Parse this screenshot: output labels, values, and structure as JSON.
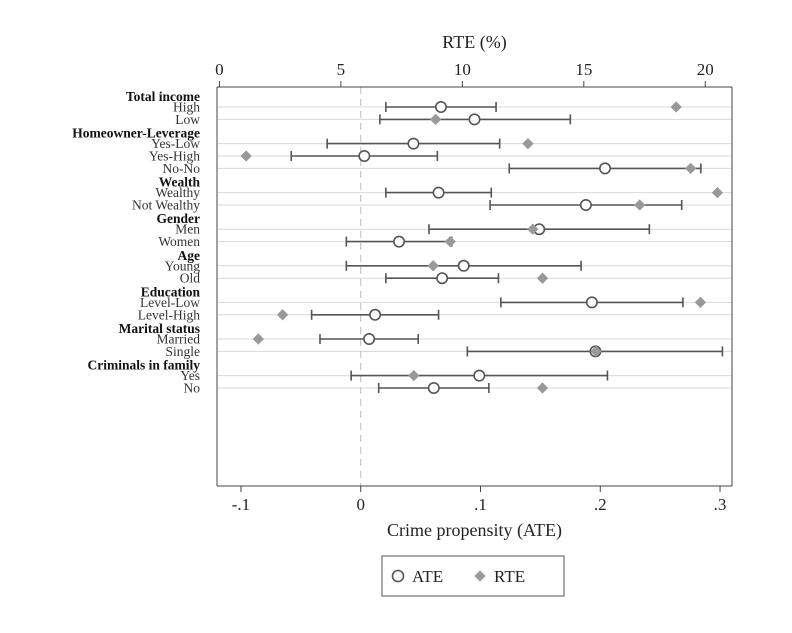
{
  "chart_data": {
    "type": "dot-errorbar",
    "xlabel_bottom": "Crime propensity (ATE)",
    "xlabel_top": "RTE (%)",
    "xlim_bottom": [
      -0.12,
      0.31
    ],
    "xlim_top": [
      -0.1,
      21.1
    ],
    "xticks_bottom": [
      -0.1,
      0,
      0.1,
      0.2,
      0.3
    ],
    "xtick_labels_bottom": [
      "-.1",
      "0",
      ".1",
      ".2",
      ".3"
    ],
    "xticks_top": [
      0,
      5,
      10,
      15,
      20
    ],
    "xtick_labels_top": [
      "0",
      "5",
      "10",
      "15",
      "20"
    ],
    "reference_line_x": 0,
    "legend": {
      "position": "bottom-center",
      "entries": [
        "ATE",
        "RTE"
      ]
    },
    "colors": {
      "ate": "#555555",
      "rte": "#999999",
      "grid": "#d9d9d9",
      "ref": "#bbbbbb"
    },
    "groups": [
      {
        "label": "Total income",
        "rows": [
          {
            "label": "High",
            "ate": 0.067,
            "ci": [
              0.021,
              0.113
            ],
            "rte": 18.8
          },
          {
            "label": "Low",
            "ate": 0.095,
            "ci": [
              0.016,
              0.175
            ],
            "rte": 8.9
          }
        ]
      },
      {
        "label": "Homeowner-Leverage",
        "rows": [
          {
            "label": "Yes-Low",
            "ate": 0.044,
            "ci": [
              -0.028,
              0.116
            ],
            "rte": 12.7
          },
          {
            "label": "Yes-High",
            "ate": 0.003,
            "ci": [
              -0.058,
              0.064
            ],
            "rte": 1.1
          },
          {
            "label": "No-No",
            "ate": 0.204,
            "ci": [
              0.124,
              0.284
            ],
            "rte": 19.4
          }
        ]
      },
      {
        "label": "Wealth",
        "rows": [
          {
            "label": "Wealthy",
            "ate": 0.065,
            "ci": [
              0.021,
              0.109
            ],
            "rte": 20.5
          },
          {
            "label": "Not Wealthy",
            "ate": 0.188,
            "ci": [
              0.108,
              0.268
            ],
            "rte": 17.3
          }
        ]
      },
      {
        "label": "Gender",
        "rows": [
          {
            "label": "Men",
            "ate": 0.149,
            "ci": [
              0.057,
              0.241
            ],
            "rte": 12.9
          },
          {
            "label": "Women",
            "ate": 0.032,
            "ci": [
              -0.012,
              0.076
            ],
            "rte": 9.5
          }
        ]
      },
      {
        "label": "Age",
        "rows": [
          {
            "label": "Young",
            "ate": 0.086,
            "ci": [
              -0.012,
              0.184
            ],
            "rte": 8.8
          },
          {
            "label": "Old",
            "ate": 0.068,
            "ci": [
              0.021,
              0.115
            ],
            "rte": 13.3
          }
        ]
      },
      {
        "label": "Education",
        "rows": [
          {
            "label": "Level-Low",
            "ate": 0.193,
            "ci": [
              0.117,
              0.269
            ],
            "rte": 19.8
          },
          {
            "label": "Level-High",
            "ate": 0.012,
            "ci": [
              -0.041,
              0.065
            ],
            "rte": 2.6
          }
        ]
      },
      {
        "label": "Marital status",
        "rows": [
          {
            "label": "Married",
            "ate": 0.007,
            "ci": [
              -0.034,
              0.048
            ],
            "rte": 1.6
          },
          {
            "label": "Single",
            "ate": 0.196,
            "ci": [
              0.089,
              0.302
            ],
            "rte": 15.5
          }
        ]
      },
      {
        "label": "Criminals in family",
        "rows": [
          {
            "label": "Yes",
            "ate": 0.099,
            "ci": [
              -0.008,
              0.206
            ],
            "rte": 8.0
          },
          {
            "label": "No",
            "ate": 0.061,
            "ci": [
              0.015,
              0.107
            ],
            "rte": 13.3
          }
        ]
      }
    ]
  }
}
